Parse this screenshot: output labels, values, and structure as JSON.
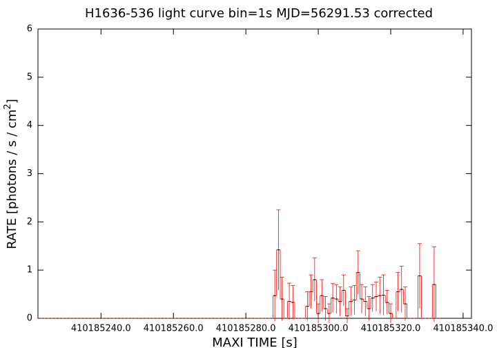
{
  "chart_data": {
    "type": "errorstep",
    "title": "H1636-536 light curve bin=1s MJD=56291.53 corrected",
    "x_label": "MAXI TIME [s]",
    "y_label": "RATE [photons / s / cm",
    "y_label_sup": "2",
    "y_label_end": "]",
    "xlim": [
      410185222.6,
      410185342.3
    ],
    "xticks": [
      {
        "value": 410185240,
        "label": "410185240.0"
      },
      {
        "value": 410185260,
        "label": "410185260.0"
      },
      {
        "value": 410185280,
        "label": "410185280.0"
      },
      {
        "value": 410185300,
        "label": "410185300.0"
      },
      {
        "value": 410185320,
        "label": "410185320.0"
      },
      {
        "value": 410185340,
        "label": "410185340.0"
      }
    ],
    "ylim": [
      0,
      6
    ],
    "yticks": [
      0,
      1,
      2,
      3,
      4,
      5,
      6
    ],
    "bin_width": 1,
    "series": [
      {
        "color": "#ff0000",
        "x": [
          410185223,
          410185224,
          410185225,
          410185226,
          410185227,
          410185228,
          410185229,
          410185230,
          410185231,
          410185232,
          410185233,
          410185234,
          410185235,
          410185236,
          410185237,
          410185238,
          410185239,
          410185240,
          410185241,
          410185242,
          410185243,
          410185244,
          410185245,
          410185246,
          410185247,
          410185248,
          410185249,
          410185250,
          410185251,
          410185252,
          410185253,
          410185254,
          410185255,
          410185256,
          410185257,
          410185258,
          410185259,
          410185260,
          410185261,
          410185262,
          410185263,
          410185264,
          410185265,
          410185266,
          410185267,
          410185268,
          410185269,
          410185270,
          410185271,
          410185272,
          410185273,
          410185274,
          410185275,
          410185276,
          410185277,
          410185278,
          410185279,
          410185280,
          410185281,
          410185282,
          410185283,
          410185284,
          410185285,
          410185286,
          410185287,
          410185288,
          410185289,
          410185290,
          410185291,
          410185292,
          410185293,
          410185294,
          410185295,
          410185296,
          410185297,
          410185298,
          410185299,
          410185300,
          410185301,
          410185302,
          410185303,
          410185304,
          410185305,
          410185306,
          410185307,
          410185308,
          410185309,
          410185310,
          410185311,
          410185312,
          410185313,
          410185314,
          410185315,
          410185316,
          410185317,
          410185318,
          410185319,
          410185320,
          410185321,
          410185322,
          410185323,
          410185324,
          410185325,
          410185326,
          410185327,
          410185328,
          410185329,
          410185330,
          410185331,
          410185332,
          410185333
        ],
        "values": [
          0,
          0,
          0,
          0,
          0,
          0,
          0,
          0,
          0,
          0,
          0,
          0,
          0,
          0,
          0,
          0,
          0,
          0,
          0,
          0,
          0,
          0,
          0,
          0,
          0,
          0,
          0,
          0,
          0,
          0,
          0,
          0,
          0,
          0,
          0,
          0,
          0,
          0,
          0,
          0,
          0,
          0,
          0,
          0,
          0,
          0,
          0,
          0,
          0,
          0,
          0,
          0,
          0,
          0,
          0,
          0,
          0,
          0,
          0,
          0,
          0,
          0,
          0,
          0,
          0,
          0.47,
          1.42,
          0.4,
          0,
          0.35,
          0.33,
          0,
          0,
          0,
          0.25,
          0.55,
          0.8,
          0.1,
          0.47,
          0.2,
          0.1,
          0.42,
          0.4,
          0.35,
          0.58,
          0.05,
          0.35,
          0.38,
          0.95,
          0.4,
          0.35,
          0.2,
          0.42,
          0.45,
          0.47,
          0.48,
          0.33,
          0.1,
          0,
          0.55,
          0.6,
          0.3,
          0,
          0,
          0,
          0.88,
          0,
          0,
          0,
          0.7,
          0
        ],
        "errors": [
          0,
          0,
          0,
          0,
          0,
          0,
          0,
          0,
          0,
          0,
          0,
          0,
          0,
          0,
          0,
          0,
          0,
          0,
          0,
          0,
          0,
          0,
          0,
          0,
          0,
          0,
          0,
          0,
          0,
          0,
          0,
          0,
          0,
          0,
          0,
          0,
          0,
          0,
          0,
          0,
          0,
          0,
          0,
          0,
          0,
          0,
          0,
          0,
          0,
          0,
          0,
          0,
          0,
          0,
          0,
          0,
          0,
          0,
          0,
          0,
          0,
          0,
          0,
          0,
          0,
          0.53,
          0.83,
          0.45,
          0,
          0.38,
          0.35,
          0,
          0,
          0,
          0.3,
          0.35,
          0.45,
          0.2,
          0.33,
          0.25,
          0.2,
          0.3,
          0.3,
          0.3,
          0.32,
          0.15,
          0.3,
          0.3,
          0.45,
          0.3,
          0.3,
          0.25,
          0.28,
          0.3,
          0.38,
          0.42,
          0.25,
          0.2,
          0,
          0.4,
          0.48,
          0.35,
          0,
          0,
          0,
          0.67,
          0,
          0,
          0,
          0.78,
          0
        ]
      }
    ]
  }
}
